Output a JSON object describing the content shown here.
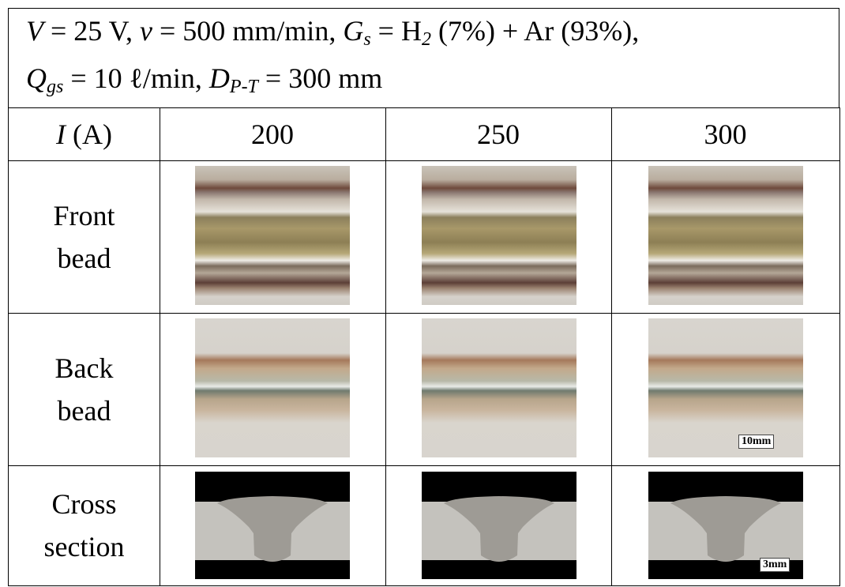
{
  "header": {
    "segments": [
      "V",
      " = 25 V, ",
      "v",
      " = 500 mm/min, ",
      "G",
      "s",
      " = H",
      "2",
      " (7%) + Ar (93%),",
      "Q",
      "gs",
      " = 10 ℓ/min, ",
      "D",
      "P-T",
      " = 300 mm"
    ]
  },
  "table": {
    "corner": [
      "I",
      " (A)"
    ],
    "columns": [
      200,
      250,
      300
    ],
    "rows": [
      "Front bead",
      "Back bead",
      "Cross section"
    ],
    "scale_labels": [
      "10mm",
      "3mm"
    ]
  }
}
